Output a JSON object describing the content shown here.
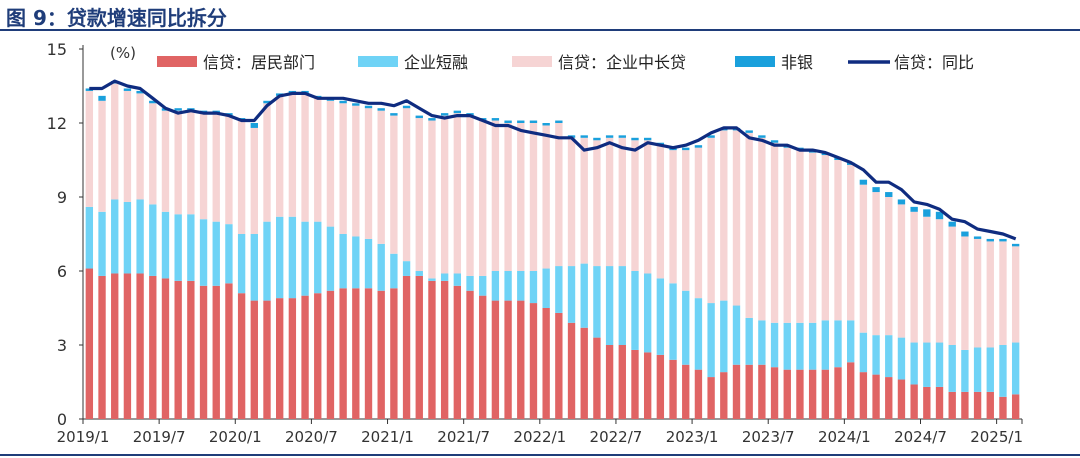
{
  "figure_title": "图 9：贷款增速同比拆分",
  "colors": {
    "title": "#1f3d7a",
    "resident": "#e06464",
    "corp_short": "#6fd3f6",
    "corp_long": "#f6d4d4",
    "nonbank": "#1aa0dc",
    "line": "#0f2c80",
    "axis": "#333333"
  },
  "chart_data": {
    "type": "bar",
    "stacked": true,
    "unit_label": "(%)",
    "ylim": [
      0,
      15
    ],
    "yticks": [
      0,
      3,
      6,
      9,
      12,
      15
    ],
    "x_tick_labels": [
      "2019/1",
      "2019/7",
      "2020/1",
      "2020/7",
      "2021/1",
      "2021/7",
      "2022/1",
      "2022/7",
      "2023/1",
      "2023/7",
      "2024/1",
      "2024/7",
      "2025/1"
    ],
    "x_tick_indices": [
      0,
      6,
      12,
      18,
      24,
      30,
      36,
      42,
      48,
      54,
      60,
      66,
      72
    ],
    "categories": [
      "2019/1",
      "2019/2",
      "2019/3",
      "2019/4",
      "2019/5",
      "2019/6",
      "2019/7",
      "2019/8",
      "2019/9",
      "2019/10",
      "2019/11",
      "2019/12",
      "2020/1",
      "2020/2",
      "2020/3",
      "2020/4",
      "2020/5",
      "2020/6",
      "2020/7",
      "2020/8",
      "2020/9",
      "2020/10",
      "2020/11",
      "2020/12",
      "2021/1",
      "2021/2",
      "2021/3",
      "2021/4",
      "2021/5",
      "2021/6",
      "2021/7",
      "2021/8",
      "2021/9",
      "2021/10",
      "2021/11",
      "2021/12",
      "2022/1",
      "2022/2",
      "2022/3",
      "2022/4",
      "2022/5",
      "2022/6",
      "2022/7",
      "2022/8",
      "2022/9",
      "2022/10",
      "2022/11",
      "2022/12",
      "2023/1",
      "2023/2",
      "2023/3",
      "2023/4",
      "2023/5",
      "2023/6",
      "2023/7",
      "2023/8",
      "2023/9",
      "2023/10",
      "2023/11",
      "2023/12",
      "2024/1",
      "2024/2",
      "2024/3",
      "2024/4",
      "2024/5",
      "2024/6",
      "2024/7",
      "2024/8",
      "2024/9",
      "2024/10",
      "2024/11",
      "2024/12",
      "2025/1",
      "2025/2"
    ],
    "series": [
      {
        "name": "信贷：居民部门",
        "kind": "bar",
        "values": [
          6.1,
          5.8,
          5.9,
          5.9,
          5.9,
          5.8,
          5.7,
          5.6,
          5.6,
          5.4,
          5.4,
          5.5,
          5.1,
          4.8,
          4.8,
          4.9,
          4.9,
          5.0,
          5.1,
          5.2,
          5.3,
          5.3,
          5.3,
          5.2,
          5.3,
          5.8,
          5.8,
          5.6,
          5.6,
          5.4,
          5.2,
          5.0,
          4.8,
          4.8,
          4.8,
          4.7,
          4.5,
          4.3,
          3.9,
          3.7,
          3.3,
          3.0,
          3.0,
          2.8,
          2.7,
          2.6,
          2.4,
          2.2,
          2.0,
          1.7,
          1.9,
          2.2,
          2.2,
          2.2,
          2.1,
          2.0,
          2.0,
          2.0,
          2.0,
          2.1,
          2.3,
          1.9,
          1.8,
          1.7,
          1.6,
          1.4,
          1.3,
          1.3,
          1.1,
          1.1,
          1.1,
          1.1,
          0.9,
          1.0
        ]
      },
      {
        "name": "企业短融",
        "kind": "bar",
        "values": [
          2.5,
          2.6,
          3.0,
          2.9,
          3.0,
          2.9,
          2.7,
          2.7,
          2.7,
          2.7,
          2.6,
          2.4,
          2.4,
          2.7,
          3.2,
          3.3,
          3.3,
          3.0,
          2.9,
          2.6,
          2.2,
          2.1,
          2.0,
          1.9,
          1.4,
          0.6,
          0.2,
          0.1,
          0.3,
          0.5,
          0.6,
          0.8,
          1.2,
          1.2,
          1.2,
          1.3,
          1.6,
          1.9,
          2.3,
          2.6,
          2.9,
          3.2,
          3.2,
          3.2,
          3.2,
          3.1,
          3.1,
          3.0,
          2.9,
          3.0,
          2.9,
          2.4,
          1.9,
          1.8,
          1.8,
          1.9,
          1.9,
          1.9,
          2.0,
          1.9,
          1.7,
          1.6,
          1.6,
          1.7,
          1.7,
          1.7,
          1.8,
          1.8,
          1.9,
          1.7,
          1.8,
          1.8,
          2.1,
          2.1
        ]
      },
      {
        "name": "信贷：企业中长贷",
        "kind": "bar",
        "values": [
          4.7,
          4.5,
          4.7,
          4.5,
          4.3,
          4.1,
          4.1,
          4.2,
          4.2,
          4.3,
          4.4,
          4.4,
          4.6,
          4.3,
          4.8,
          4.9,
          5.0,
          5.2,
          5.0,
          5.1,
          5.3,
          5.3,
          5.3,
          5.4,
          5.6,
          6.2,
          6.2,
          6.4,
          6.4,
          6.5,
          6.5,
          6.3,
          6.1,
          6.0,
          6.0,
          6.0,
          5.8,
          5.8,
          5.2,
          5.1,
          5.1,
          5.2,
          5.2,
          5.3,
          5.4,
          5.4,
          5.4,
          5.7,
          6.1,
          6.7,
          6.9,
          7.1,
          7.5,
          7.4,
          7.3,
          7.1,
          7.0,
          6.9,
          6.7,
          6.5,
          6.3,
          6.0,
          5.8,
          5.6,
          5.4,
          5.3,
          5.1,
          5.0,
          4.8,
          4.6,
          4.4,
          4.3,
          4.2,
          3.9
        ]
      },
      {
        "name": "非银",
        "kind": "bar",
        "values": [
          0.1,
          0.2,
          0.1,
          0.1,
          0.1,
          0.1,
          0.1,
          0.1,
          0.1,
          0.1,
          0.1,
          0.1,
          0.1,
          0.2,
          0.1,
          0.1,
          0.1,
          0.1,
          0.1,
          0.1,
          0.1,
          0.1,
          0.1,
          0.1,
          0.1,
          0.1,
          0.1,
          0.1,
          0.1,
          0.1,
          0.1,
          0.1,
          0.1,
          0.1,
          0.1,
          0.1,
          0.1,
          0.1,
          0.1,
          0.1,
          0.1,
          0.1,
          0.1,
          0.1,
          0.1,
          0.1,
          0.1,
          0.1,
          0.1,
          0.1,
          0.1,
          0.1,
          0.1,
          0.1,
          0.1,
          0.1,
          0.1,
          0.1,
          0.1,
          0.1,
          0.1,
          0.2,
          0.2,
          0.2,
          0.2,
          0.2,
          0.3,
          0.3,
          0.2,
          0.2,
          0.1,
          0.1,
          0.1,
          0.1
        ]
      },
      {
        "name": "信贷：同比",
        "kind": "line",
        "values": [
          13.4,
          13.4,
          13.7,
          13.5,
          13.4,
          13.0,
          12.6,
          12.4,
          12.5,
          12.4,
          12.4,
          12.3,
          12.1,
          12.1,
          12.7,
          13.1,
          13.2,
          13.2,
          13.0,
          13.0,
          13.0,
          12.9,
          12.8,
          12.8,
          12.7,
          12.9,
          12.6,
          12.3,
          12.2,
          12.3,
          12.3,
          12.1,
          11.9,
          11.9,
          11.7,
          11.6,
          11.5,
          11.4,
          11.4,
          10.9,
          11.0,
          11.2,
          11.0,
          10.9,
          11.2,
          11.1,
          11.0,
          11.1,
          11.3,
          11.6,
          11.8,
          11.8,
          11.4,
          11.3,
          11.1,
          11.1,
          10.9,
          10.9,
          10.8,
          10.6,
          10.4,
          10.1,
          9.6,
          9.6,
          9.3,
          8.8,
          8.7,
          8.5,
          8.1,
          8.0,
          7.7,
          7.6,
          7.5,
          7.3
        ]
      }
    ]
  }
}
